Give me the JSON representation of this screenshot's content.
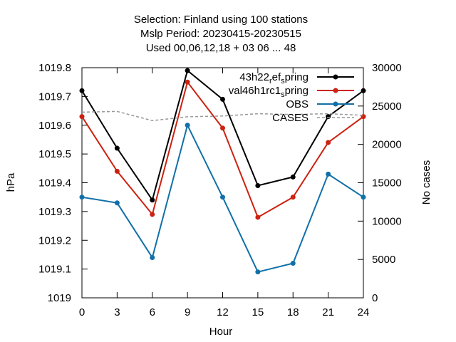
{
  "chart_data": {
    "type": "line",
    "title_lines": [
      "Selection: Finland using   100 stations",
      "Mslp   Period: 20230415-20230515",
      "Used  00,06,12,18  + 03 06 ... 48"
    ],
    "xlabel": "Hour",
    "ylabel": "hPa",
    "y2label": "No cases",
    "x": [
      0,
      3,
      6,
      9,
      12,
      15,
      18,
      21,
      24
    ],
    "xlim": [
      0,
      24
    ],
    "ylim": [
      1019,
      1019.8
    ],
    "y2lim": [
      0,
      30000
    ],
    "x_ticks": [
      "0",
      "3",
      "6",
      "9",
      "12",
      "15",
      "18",
      "21",
      "24"
    ],
    "y_ticks": [
      "1019",
      "1019.1",
      "1019.2",
      "1019.3",
      "1019.4",
      "1019.5",
      "1019.6",
      "1019.7",
      "1019.8"
    ],
    "y2_ticks": [
      "0",
      "5000",
      "10000",
      "15000",
      "20000",
      "25000",
      "30000"
    ],
    "grid": false,
    "legend_position": "top-right",
    "series": [
      {
        "label_parts": [
          [
            "43h22",
            "n"
          ],
          [
            "r",
            "sub"
          ],
          [
            "ef",
            "n"
          ],
          [
            "s",
            "sub"
          ],
          [
            "pring",
            "n"
          ]
        ],
        "color": "#000000",
        "axis": "y",
        "style": "solid",
        "values": [
          1019.72,
          1019.52,
          1019.34,
          1019.79,
          1019.69,
          1019.39,
          1019.42,
          1019.63,
          1019.72
        ]
      },
      {
        "label_parts": [
          [
            "val46h1rc1",
            "n"
          ],
          [
            "s",
            "sub"
          ],
          [
            "pring",
            "n"
          ]
        ],
        "color": "#cc2211",
        "axis": "y",
        "style": "solid",
        "values": [
          1019.63,
          1019.44,
          1019.29,
          1019.75,
          1019.59,
          1019.28,
          1019.35,
          1019.54,
          1019.63
        ]
      },
      {
        "label_parts": [
          [
            "OBS",
            "n"
          ]
        ],
        "color": "#1170a8",
        "axis": "y",
        "style": "solid",
        "values": [
          1019.35,
          1019.33,
          1019.14,
          1019.6,
          1019.35,
          1019.09,
          1019.12,
          1019.43,
          1019.35
        ]
      },
      {
        "label_parts": [
          [
            "CASES",
            "n"
          ]
        ],
        "color": "#999999",
        "axis": "y2",
        "style": "dashed",
        "values": [
          24200,
          24300,
          23100,
          23600,
          23700,
          24000,
          23900,
          24000,
          23800
        ]
      }
    ]
  }
}
